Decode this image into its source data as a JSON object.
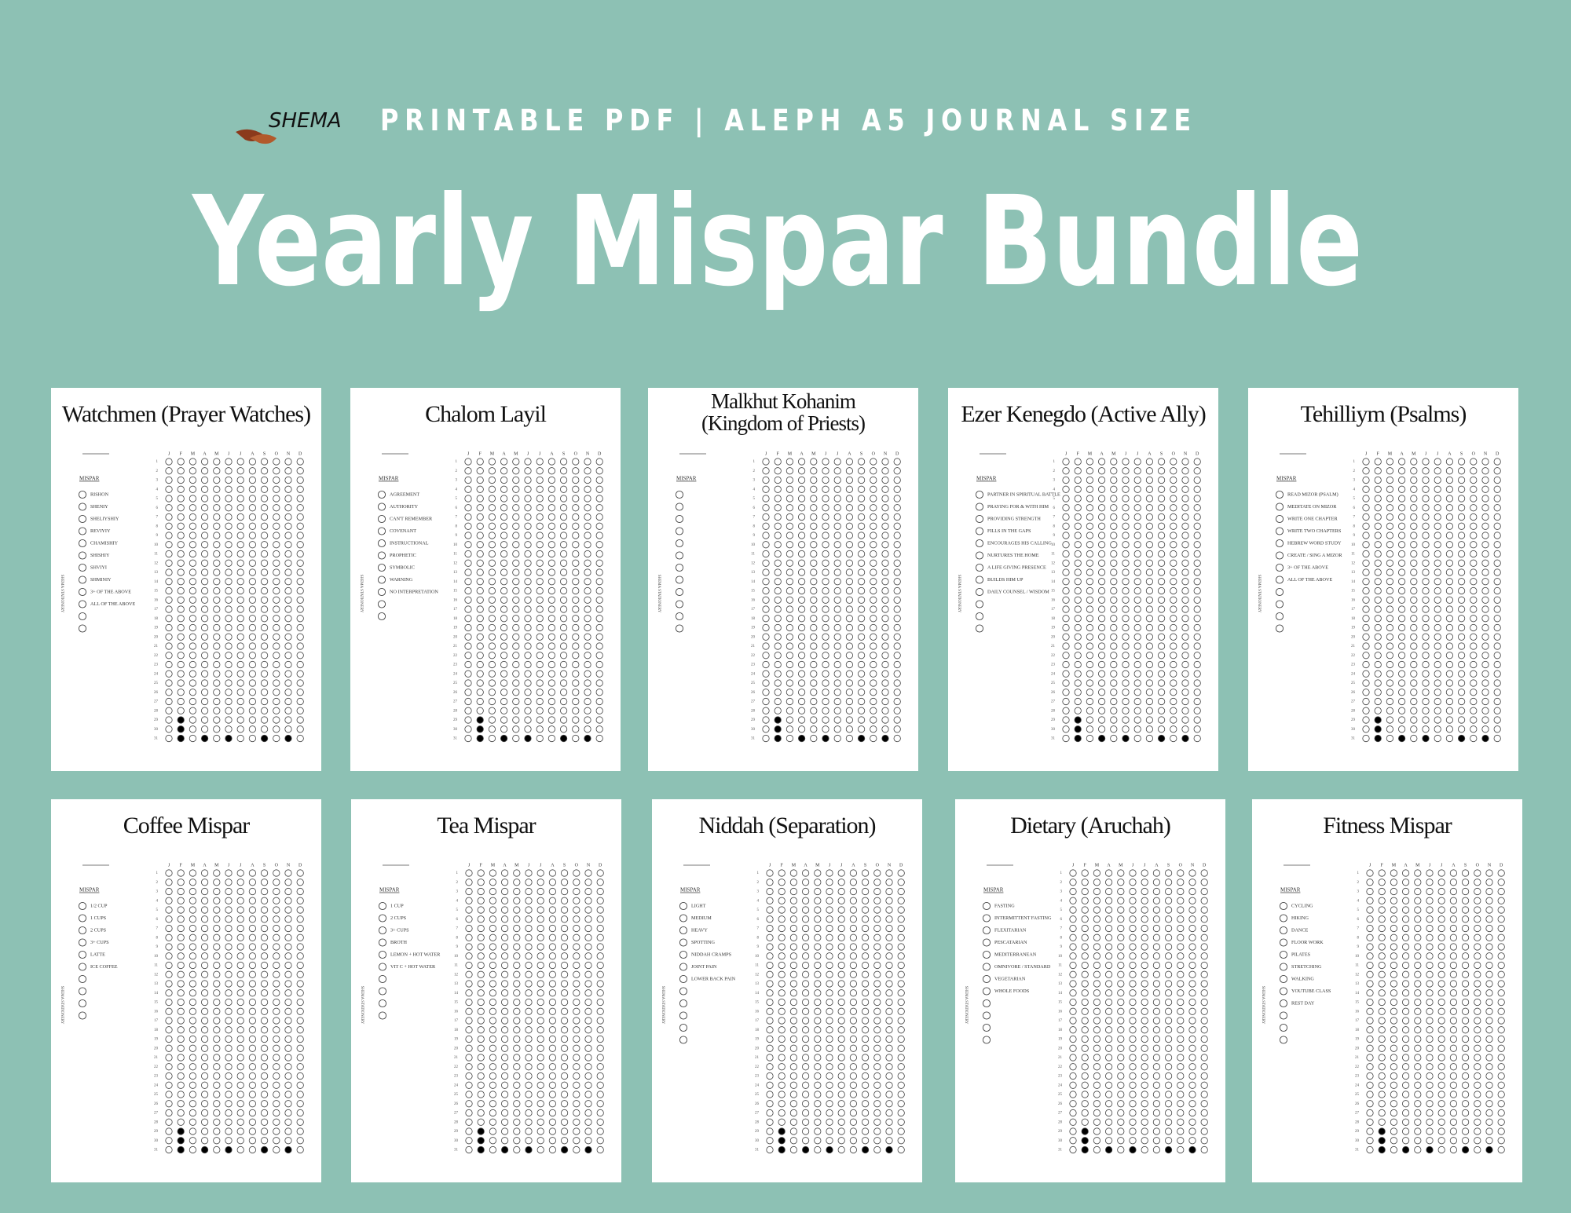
{
  "header": {
    "logo": "SHEMA",
    "tagline": "PRINTABLE PDF | ALEPH A5 JOURNAL SIZE",
    "title": "Yearly Mispar Bundle"
  },
  "months": [
    "J",
    "F",
    "M",
    "A",
    "M",
    "J",
    "J",
    "A",
    "S",
    "O",
    "N",
    "D"
  ],
  "days": [
    1,
    2,
    3,
    4,
    5,
    6,
    7,
    8,
    9,
    10,
    11,
    12,
    13,
    14,
    15,
    16,
    17,
    18,
    19,
    20,
    21,
    22,
    23,
    24,
    25,
    26,
    27,
    28,
    29,
    30,
    31
  ],
  "side_text": "SHEMA STATIONERY",
  "list_heading": "MISPAR",
  "pages": [
    {
      "title": [
        "Watchmen (Prayer Watches)"
      ],
      "options": [
        "RISHON",
        "SHENIY",
        "SHELIYSHIY",
        "REVIYIY",
        "CHAMISHIY",
        "SHISHIY",
        "SHVIYI",
        "SHMINIY",
        "3+ OF THE ABOVE",
        "ALL OF THE ABOVE",
        null,
        null
      ]
    },
    {
      "title": [
        "Chalom Layil"
      ],
      "options": [
        "AGREEMENT",
        "AUTHORITY",
        "CAN'T REMEMBER",
        "COVENANT",
        "INSTRUCTIONAL",
        "PROPHETIC",
        "SYMBOLIC",
        "WARNING",
        "NO INTERPRETATION",
        null,
        null
      ]
    },
    {
      "title": [
        "Malkhut Kohanim",
        "(Kingdom of Priests)"
      ],
      "options": [
        null,
        null,
        null,
        null,
        null,
        null,
        null,
        null,
        null,
        null,
        null,
        null
      ]
    },
    {
      "title": [
        "Ezer Kenegdo (Active Ally)"
      ],
      "options": [
        "PARTNER IN SPIRITUAL BATTLE",
        "PRAYING FOR & WITH HIM",
        "PROVIDING STRENGTH",
        "FILLS IN THE GAPS",
        "ENCOURAGES HIS CALLING",
        "NURTURES THE HOME",
        "A LIFE GIVING PRESENCE",
        "BUILDS HIM UP",
        "DAILY COUNSEL / WISDOM",
        null,
        null,
        null
      ]
    },
    {
      "title": [
        "Tehilliym (Psalms)"
      ],
      "options": [
        "READ MIZOR (PSALM)",
        "MEDITATE ON MIZOR",
        "WRITE ONE CHAPTER",
        "WRITE TWO CHAPTERS",
        "HEBREW WORD STUDY",
        "CREATE / SING A MIZOR",
        "3+ OF THE ABOVE",
        "ALL OF THE ABOVE",
        null,
        null,
        null,
        null
      ]
    },
    {
      "title": [
        "Coffee Mispar"
      ],
      "options": [
        "1/2 CUP",
        "1 CUPS",
        "2 CUPS",
        "3+ CUPS",
        "LATTE",
        "ICE COFFEE",
        null,
        null,
        null,
        null
      ]
    },
    {
      "title": [
        "Tea Mispar"
      ],
      "options": [
        "1 CUP",
        "2 CUPS",
        "3+ CUPS",
        "BROTH",
        "LEMON + HOT WATER",
        "VIT C + HOT WATER",
        null,
        null,
        null,
        null
      ]
    },
    {
      "title": [
        "Niddah (Separation)"
      ],
      "options": [
        "LIGHT",
        "MEDIUM",
        "HEAVY",
        "SPOTTING",
        "NIDDAH CRAMPS",
        "JOINT PAIN",
        "LOWER BACK PAIN",
        null,
        null,
        null,
        null,
        null
      ]
    },
    {
      "title": [
        "Dietary (Aruchah)"
      ],
      "options": [
        "FASTING",
        "INTERMITTENT FASTING",
        "FLEXITARIAN",
        "PESCATARIAN",
        "MEDITERRANEAN",
        "OMNIVORE / STANDARD",
        "VEGETARIAN",
        "WHOLE FOODS",
        null,
        null,
        null,
        null
      ]
    },
    {
      "title": [
        "Fitness Mispar"
      ],
      "options": [
        "CYCLING",
        "HIKING",
        "DANCE",
        "FLOOR WORK",
        "PILATES",
        "STRETCHING",
        "WALKING",
        "YOUTUBE CLASS",
        "REST DAY",
        null,
        null,
        null
      ]
    }
  ]
}
